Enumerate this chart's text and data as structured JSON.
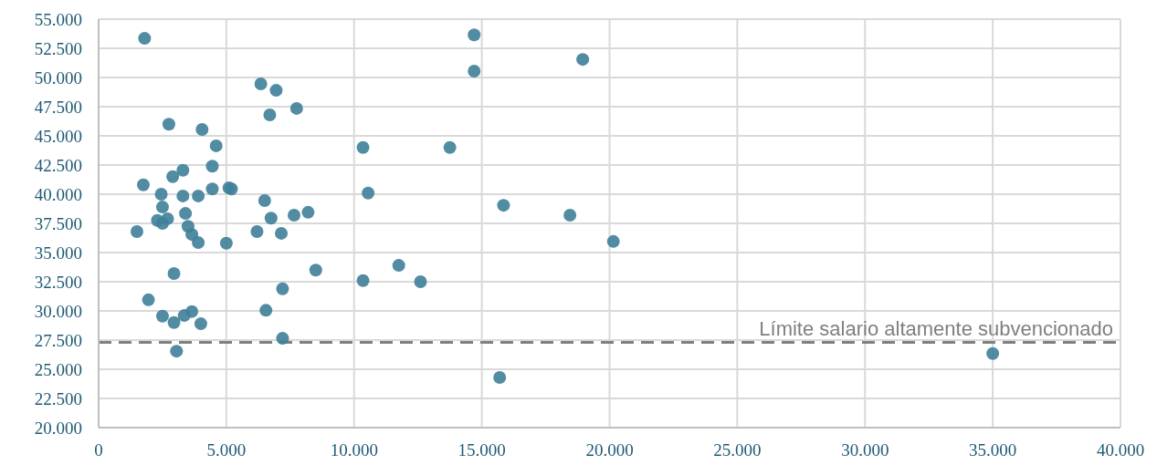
{
  "chart_data": {
    "type": "scatter",
    "x": [
      1800,
      14700,
      14700,
      18950,
      6350,
      6950,
      6700,
      7750,
      2750,
      4050,
      4600,
      10350,
      13750,
      4450,
      3300,
      2900,
      1750,
      4450,
      5100,
      5200,
      10550,
      2450,
      3300,
      3900,
      6500,
      15850,
      2500,
      18450,
      3400,
      7650,
      8200,
      6750,
      2700,
      2300,
      2500,
      3500,
      1500,
      3650,
      6200,
      7150,
      3900,
      5000,
      20150,
      8500,
      2950,
      11750,
      10350,
      12600,
      7200,
      1950,
      3650,
      2500,
      6550,
      3350,
      2950,
      4000,
      7200,
      3050,
      15700,
      35000
    ],
    "series": [
      {
        "color": "#3f7f99",
        "values": [
          53350,
          53650,
          50550,
          51550,
          49450,
          48900,
          46800,
          47350,
          46000,
          45550,
          44150,
          44000,
          44000,
          42400,
          42050,
          41500,
          40800,
          40450,
          40550,
          40450,
          40100,
          40000,
          39850,
          39850,
          39450,
          39050,
          38900,
          38200,
          38350,
          38200,
          38450,
          37950,
          37900,
          37750,
          37500,
          37250,
          36800,
          36550,
          36800,
          36650,
          35850,
          35800,
          35950,
          33500,
          33200,
          33900,
          32600,
          32500,
          31900,
          30950,
          29950,
          29550,
          30050,
          29600,
          29000,
          28900,
          27650,
          26550,
          24300,
          26350
        ]
      }
    ],
    "xlim": [
      0,
      40000
    ],
    "xticks": [
      0,
      {
        "value": 5000,
        "label": "5.000"
      },
      {
        "value": 10000,
        "label": "10.000"
      },
      {
        "value": 15000,
        "label": "15.000"
      },
      {
        "value": 20000,
        "label": "20.000"
      },
      {
        "value": 25000,
        "label": "25.000"
      },
      {
        "value": 30000,
        "label": "30.000"
      },
      {
        "value": 35000,
        "label": "35.000"
      },
      {
        "value": 40000,
        "label": "40.000"
      }
    ],
    "ylim": [
      20000,
      55000
    ],
    "yticks": [
      {
        "value": 20000,
        "label": "20.000"
      },
      {
        "value": 22500,
        "label": "22.500"
      },
      {
        "value": 25000,
        "label": "25.000"
      },
      {
        "value": 27500,
        "label": "27.500"
      },
      {
        "value": 30000,
        "label": "30.000"
      },
      {
        "value": 32500,
        "label": "32.500"
      },
      {
        "value": 35000,
        "label": "35.000"
      },
      {
        "value": 37500,
        "label": "37.500"
      },
      {
        "value": 40000,
        "label": "40.000"
      },
      {
        "value": 42500,
        "label": "42.500"
      },
      {
        "value": 45000,
        "label": "45.000"
      },
      {
        "value": 47500,
        "label": "47.500"
      },
      {
        "value": 50000,
        "label": "50.000"
      },
      {
        "value": 52500,
        "label": "52.500"
      },
      {
        "value": 55000,
        "label": "55.000"
      }
    ],
    "ref_lines": [
      {
        "axis": "y",
        "value": 27300,
        "label": "Límite salario altamente subvencionado",
        "color": "#7f7f7f",
        "line_style": "dashed"
      }
    ],
    "grid": true,
    "marker": "circle",
    "legend": false
  }
}
